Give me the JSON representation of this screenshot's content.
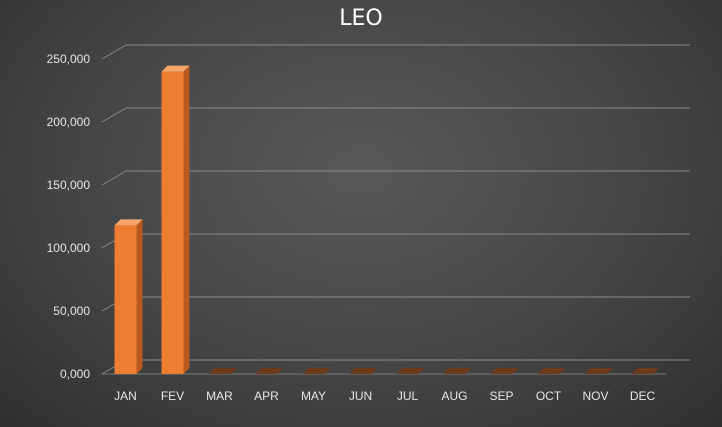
{
  "chart_data": {
    "type": "bar",
    "title": "LEO",
    "xlabel": "",
    "ylabel": "",
    "categories": [
      "JAN",
      "FEV",
      "MAR",
      "APR",
      "MAY",
      "JUN",
      "JUL",
      "AUG",
      "SEP",
      "OCT",
      "NOV",
      "DEC"
    ],
    "values": [
      118000,
      240000,
      0,
      0,
      0,
      0,
      0,
      0,
      0,
      0,
      0,
      0
    ],
    "ylim": [
      0,
      250000
    ],
    "yticks": [
      "0,000",
      "50,000",
      "100,000",
      "150,000",
      "200,000",
      "250,000"
    ],
    "ytick_values": [
      0,
      50000,
      100000,
      150000,
      200000,
      250000
    ],
    "grid": true,
    "legend": "none",
    "bar_color": "#ed7d31",
    "bar_side_color": "#b85a1f",
    "bar_top_color": "#f4a66b"
  }
}
